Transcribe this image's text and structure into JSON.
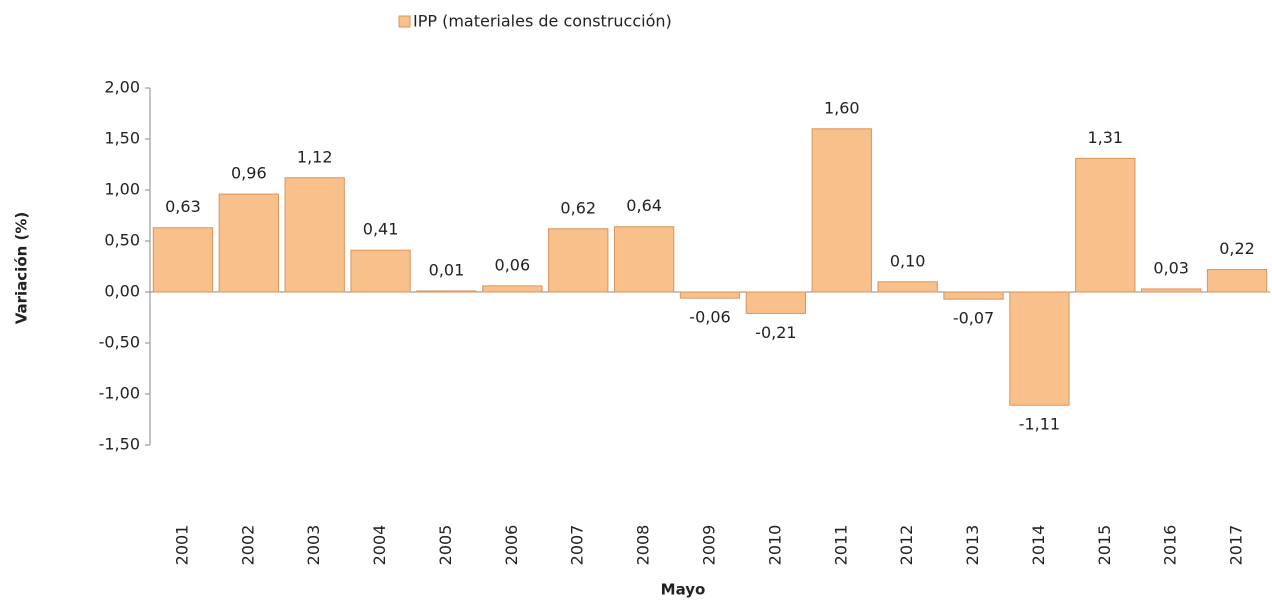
{
  "chart_data": {
    "type": "bar",
    "x_label": "Mayo",
    "y_label": "Variación (%)",
    "categories": [
      "2001",
      "2002",
      "2003",
      "2004",
      "2005",
      "2006",
      "2007",
      "2008",
      "2009",
      "2010",
      "2011",
      "2012",
      "2013",
      "2014",
      "2015",
      "2016",
      "2017"
    ],
    "series": [
      {
        "name": "IPP (materiales de construcción)",
        "color": "#f8c08a",
        "values": [
          0.63,
          0.96,
          1.12,
          0.41,
          0.01,
          0.06,
          0.62,
          0.64,
          -0.06,
          -0.21,
          1.6,
          0.1,
          -0.07,
          -1.11,
          1.31,
          0.03,
          0.22
        ],
        "value_labels": [
          "0,63",
          "0,96",
          "1,12",
          "0,41",
          "0,01",
          "0,06",
          "0,62",
          "0,64",
          "-0,06",
          "-0,21",
          "1,60",
          "0,10",
          "-0,07",
          "-1,11",
          "1,31",
          "0,03",
          "0,22"
        ]
      }
    ],
    "ylim": [
      -1.5,
      2
    ],
    "yticks": [
      {
        "value": -1.5,
        "label": "-1,50"
      },
      {
        "value": -1,
        "label": "-1,00"
      },
      {
        "value": -0.5,
        "label": "-0,50"
      },
      {
        "value": 0,
        "label": "0,00"
      },
      {
        "value": 0.5,
        "label": "0,50"
      },
      {
        "value": 1,
        "label": "1,00"
      },
      {
        "value": 1.5,
        "label": "1,50"
      },
      {
        "value": 2,
        "label": "2,00"
      }
    ],
    "grid": false,
    "legend": "top"
  }
}
